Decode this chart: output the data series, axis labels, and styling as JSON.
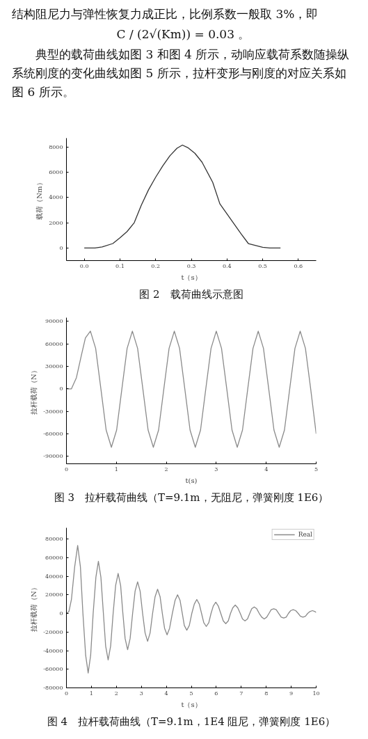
{
  "chart_data": [
    {
      "type": "line",
      "title": "图 2　载荷曲线示意图",
      "xlabel": "t（s）",
      "ylabel": "载荷（Nm）",
      "annotations": [
        "结构阻尼力与弹性恢复力成正比，比例系数一般取 3%，即",
        "C / (2√(Km)) = 0.03 。",
        "典型的载荷曲线如图 3 和图 4 所示，动响应载荷系数随操纵系统刚度的变化曲线如图 5 所示，拉杆变形与刚度的对应关系如图 6 所示。"
      ],
      "x": [
        0,
        0.03,
        0.05,
        0.08,
        0.1,
        0.12,
        0.14,
        0.16,
        0.18,
        0.2,
        0.22,
        0.24,
        0.26,
        0.275,
        0.29,
        0.31,
        0.33,
        0.36,
        0.38,
        0.4,
        0.42,
        0.44,
        0.46,
        0.5,
        0.52,
        0.55
      ],
      "series": [
        {
          "color": "#333333",
          "values": [
            0,
            0,
            80,
            350,
            800,
            1300,
            2000,
            3400,
            4600,
            5600,
            6500,
            7300,
            7900,
            8150,
            7950,
            7500,
            6800,
            5200,
            3500,
            2700,
            1900,
            1100,
            350,
            50,
            0,
            0
          ]
        }
      ],
      "xlim": [
        -0.05,
        0.65
      ],
      "xticks": [
        {
          "value": 0,
          "label": "0.0"
        },
        0.1,
        0.2,
        0.3,
        0.4,
        0.5,
        0.6
      ],
      "ylim": [
        -1000,
        8700
      ],
      "yticks": [
        0,
        2000,
        4000,
        6000,
        8000
      ],
      "grid": false,
      "legend": false
    },
    {
      "type": "line",
      "title": "图 3　拉杆载荷曲线（T=9.1m，无阻尼，弹簧刚度 1E6）",
      "xlabel": "t(s)",
      "ylabel": "拉杆载荷（N）",
      "x": [
        0,
        0.1,
        0.2,
        0.3,
        0.38,
        0.48,
        0.585,
        0.69,
        0.795,
        0.9,
        1.005,
        1.11,
        1.215,
        1.32,
        1.425,
        1.53,
        1.635,
        1.74,
        1.845,
        1.95,
        2.055,
        2.16,
        2.265,
        2.37,
        2.475,
        2.58,
        2.685,
        2.79,
        2.895,
        3.0,
        3.105,
        3.21,
        3.315,
        3.42,
        3.525,
        3.63,
        3.735,
        3.84,
        3.945,
        4.05,
        4.155,
        4.26,
        4.365,
        4.47,
        4.575,
        4.68,
        4.785,
        4.89,
        5.0
      ],
      "series": [
        {
          "color": "#8a8a8a",
          "values": [
            0,
            0,
            15000,
            45000,
            68000,
            77000,
            54000,
            0,
            -55000,
            -78000,
            -55000,
            0,
            54000,
            77000,
            54000,
            0,
            -55000,
            -78000,
            -55000,
            0,
            54000,
            77000,
            54000,
            0,
            -55000,
            -78000,
            -55000,
            0,
            54000,
            77000,
            54000,
            0,
            -55000,
            -78000,
            -55000,
            0,
            54000,
            77000,
            54000,
            0,
            -55000,
            -78000,
            -55000,
            0,
            54000,
            77000,
            54000,
            0,
            -60000
          ]
        }
      ],
      "xlim": [
        0,
        5
      ],
      "xticks": [
        0,
        1,
        2,
        3,
        4,
        5
      ],
      "ylim": [
        -100000,
        95000
      ],
      "yticks": [
        -90000,
        -60000,
        -30000,
        0,
        30000,
        60000,
        90000
      ],
      "grid": false,
      "legend": false
    },
    {
      "type": "line",
      "title": "图 4　拉杆载荷曲线（T=9.1m，1E4 阻尼，弹簧刚度 1E6）",
      "xlabel": "t（s）",
      "ylabel": "拉杆载荷（N）",
      "x": [
        0,
        0.1,
        0.2,
        0.33,
        0.45,
        0.56,
        0.66,
        0.77,
        0.87,
        0.97,
        1.07,
        1.18,
        1.28,
        1.38,
        1.48,
        1.57,
        1.67,
        1.77,
        1.87,
        1.97,
        2.07,
        2.17,
        2.26,
        2.35,
        2.45,
        2.55,
        2.65,
        2.75,
        2.85,
        2.95,
        3.05,
        3.15,
        3.25,
        3.35,
        3.45,
        3.55,
        3.65,
        3.75,
        3.84,
        3.93,
        4.03,
        4.13,
        4.24,
        4.35,
        4.45,
        4.55,
        4.64,
        4.72,
        4.82,
        4.92,
        5.02,
        5.12,
        5.22,
        5.32,
        5.41,
        5.5,
        5.6,
        5.7,
        5.79,
        5.88,
        5.98,
        6.08,
        6.18,
        6.28,
        6.38,
        6.48,
        6.57,
        6.66,
        6.76,
        6.86,
        6.96,
        7.05,
        7.15,
        7.25,
        7.34,
        7.42,
        7.52,
        7.62,
        7.72,
        7.82,
        7.92,
        8.02,
        8.11,
        8.2,
        8.3,
        8.4,
        8.5,
        8.6,
        8.7,
        8.8,
        8.89,
        8.98,
        9.08,
        9.18,
        9.28,
        9.37,
        9.47,
        9.57,
        9.66,
        9.75,
        9.85,
        9.95,
        10.0
      ],
      "series": [
        {
          "name": "Real",
          "color": "#8a8a8a",
          "values": [
            0,
            2000,
            15000,
            50000,
            73000,
            50000,
            0,
            -45000,
            -64000,
            -45000,
            0,
            39000,
            56000,
            39000,
            0,
            -35000,
            -50000,
            -35000,
            0,
            30000,
            43000,
            30000,
            0,
            -27000,
            -39000,
            -27000,
            0,
            24000,
            34000,
            24000,
            0,
            -21000,
            -30000,
            -21000,
            0,
            18000,
            26000,
            18000,
            0,
            -16000,
            -23000,
            -16000,
            0,
            14000,
            20000,
            14000,
            0,
            -13000,
            -18000,
            -13000,
            0,
            10000,
            15000,
            10000,
            0,
            -10000,
            -14000,
            -10000,
            0,
            8000,
            12000,
            8000,
            0,
            -8000,
            -11000,
            -8000,
            0,
            6000,
            9000,
            6000,
            0,
            -6000,
            -8000,
            -6000,
            0,
            5000,
            7000,
            5000,
            0,
            -4000,
            -6000,
            -4000,
            0,
            4000,
            5000,
            4000,
            0,
            -4000,
            -5000,
            -4000,
            0,
            3000,
            4000,
            3000,
            0,
            -3000,
            -4000,
            -3000,
            0,
            2000,
            3000,
            2000,
            1000
          ]
        }
      ],
      "xlim": [
        0,
        10
      ],
      "xticks": [
        0,
        1,
        2,
        3,
        4,
        5,
        6,
        7,
        8,
        9,
        10
      ],
      "ylim": [
        -80000,
        92000
      ],
      "yticks": [
        -80000,
        -60000,
        -40000,
        -20000,
        0,
        20000,
        40000,
        60000,
        80000
      ],
      "grid": false,
      "legend": "top right"
    }
  ]
}
